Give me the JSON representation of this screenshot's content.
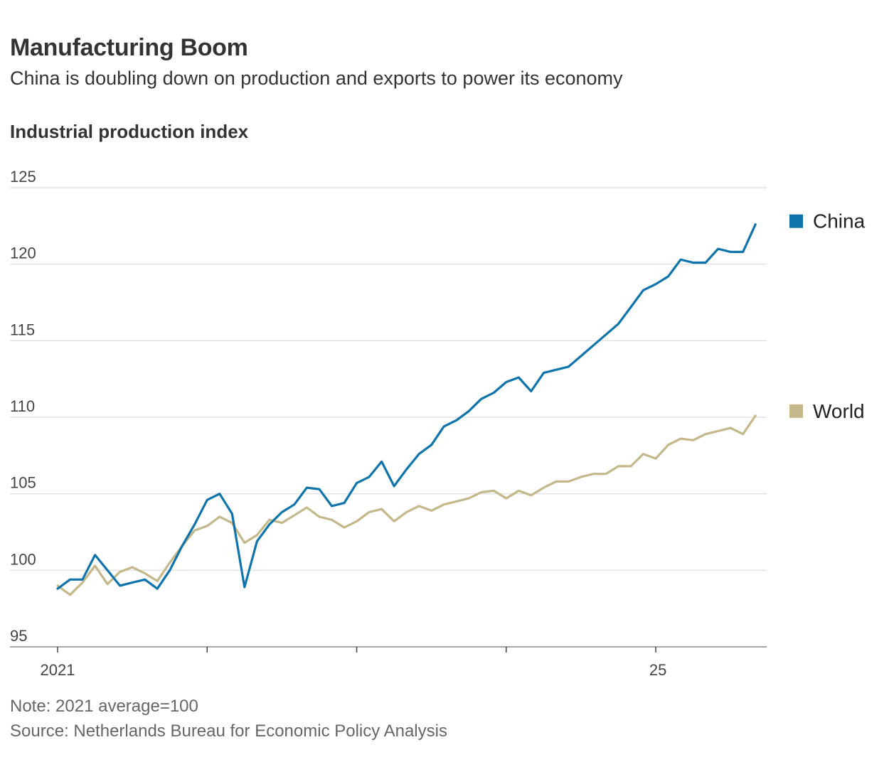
{
  "header": {
    "title": "Manufacturing Boom",
    "subtitle": "China is doubling down on production and exports to power its economy",
    "axis_title": "Industrial production index"
  },
  "footer": {
    "note": "Note: 2021 average=100",
    "source": "Source: Netherlands Bureau for Economic Policy Analysis"
  },
  "colors": {
    "china": "#0e74ab",
    "world": "#c4b88a",
    "grid": "#dddddd",
    "axis": "#888888"
  },
  "chart_data": {
    "type": "line",
    "title": "Manufacturing Boom",
    "subtitle": "China is doubling down on production and exports to power its economy",
    "ylabel": "Industrial production index",
    "xlabel": "",
    "ylim": [
      95,
      125
    ],
    "yticks": [
      95,
      100,
      105,
      110,
      115,
      120,
      125
    ],
    "x_start": "2021-01",
    "x_ticks": [
      {
        "index": 0,
        "label": "2021"
      },
      {
        "index": 12,
        "label": ""
      },
      {
        "index": 24,
        "label": ""
      },
      {
        "index": 36,
        "label": ""
      },
      {
        "index": 48,
        "label": " 25"
      }
    ],
    "xlim": [
      0,
      56.9
    ],
    "grid": true,
    "legend": "right",
    "series": [
      {
        "name": "China",
        "values": [
          98.8,
          99.4,
          99.4,
          101.0,
          100.0,
          99.0,
          99.2,
          99.4,
          98.8,
          100.0,
          101.6,
          103.0,
          104.6,
          105.0,
          103.7,
          98.9,
          101.9,
          103.0,
          103.8,
          104.3,
          105.4,
          105.3,
          104.2,
          104.4,
          105.7,
          106.1,
          107.1,
          105.5,
          106.6,
          107.6,
          108.2,
          109.4,
          109.8,
          110.4,
          111.2,
          111.6,
          112.3,
          112.6,
          111.7,
          112.9,
          113.1,
          113.3,
          114.0,
          114.7,
          115.4,
          116.1,
          117.2,
          118.3,
          118.7,
          119.2,
          120.3,
          120.1,
          120.1,
          121.0,
          120.8,
          120.8,
          122.6
        ]
      },
      {
        "name": "World",
        "values": [
          99.0,
          98.4,
          99.2,
          100.3,
          99.1,
          99.9,
          100.2,
          99.8,
          99.3,
          100.5,
          101.6,
          102.6,
          102.9,
          103.5,
          103.1,
          101.8,
          102.3,
          103.3,
          103.1,
          103.6,
          104.1,
          103.5,
          103.3,
          102.8,
          103.2,
          103.8,
          104.0,
          103.2,
          103.8,
          104.2,
          103.9,
          104.3,
          104.5,
          104.7,
          105.1,
          105.2,
          104.7,
          105.2,
          104.9,
          105.4,
          105.8,
          105.8,
          106.1,
          106.3,
          106.3,
          106.8,
          106.8,
          107.6,
          107.3,
          108.2,
          108.6,
          108.5,
          108.9,
          109.1,
          109.3,
          108.9,
          110.1
        ]
      }
    ]
  }
}
